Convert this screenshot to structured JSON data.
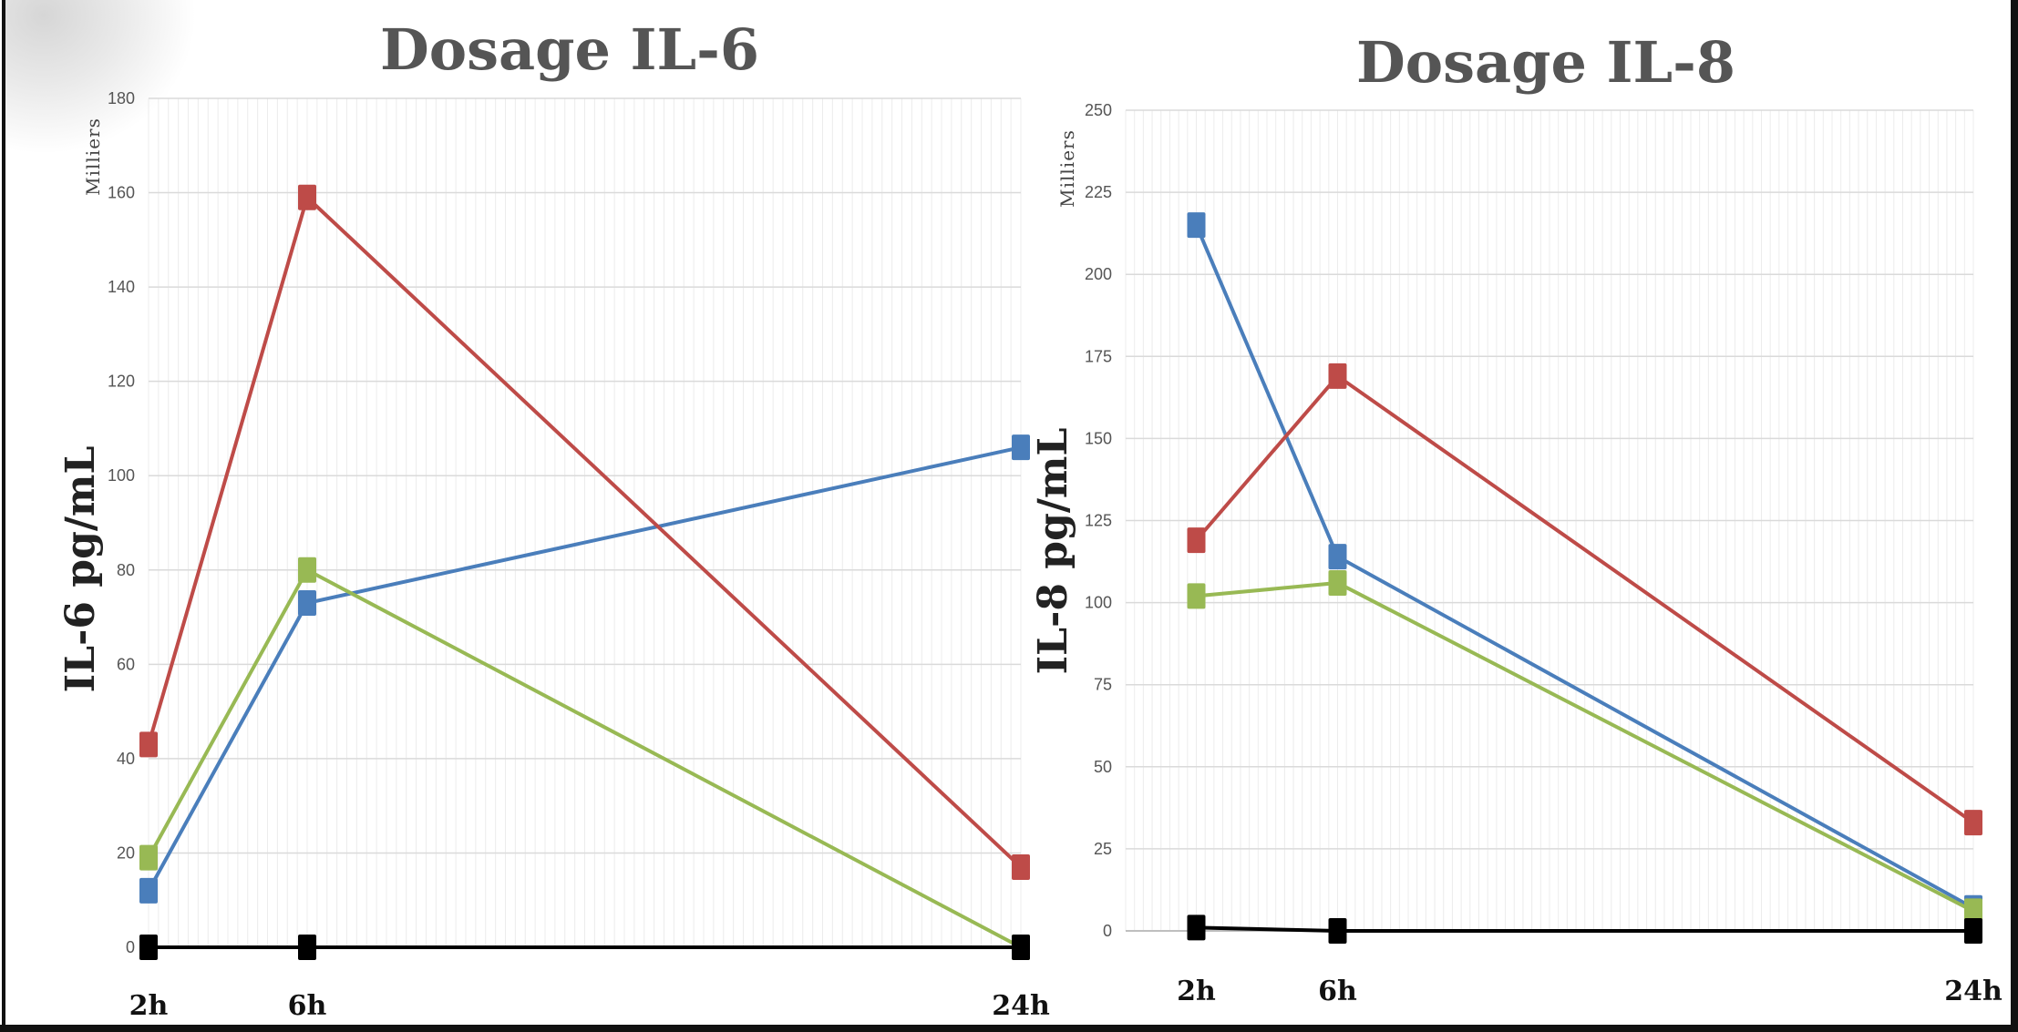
{
  "chart_data": [
    {
      "type": "line",
      "title": "Dosage IL-6",
      "ylabel": "IL-6 pg/mL",
      "units_label": "Milliers",
      "x": [
        2,
        6,
        24
      ],
      "x_tick_labels": [
        "2h",
        "6h",
        "24h"
      ],
      "xlim": [
        2,
        24
      ],
      "ylim": [
        0,
        180
      ],
      "y_ticks": [
        0,
        20,
        40,
        60,
        80,
        100,
        120,
        140,
        160,
        180
      ],
      "grid": true,
      "series": [
        {
          "color": "#4a7ebb",
          "values": [
            12,
            73,
            106
          ]
        },
        {
          "color": "#be4b48",
          "values": [
            43,
            159,
            17
          ]
        },
        {
          "color": "#98b954",
          "values": [
            19,
            80,
            0
          ]
        },
        {
          "color": "#000000",
          "values": [
            0,
            0,
            0
          ]
        }
      ]
    },
    {
      "type": "line",
      "title": "Dosage IL-8",
      "ylabel": "IL-8 pg/mL",
      "units_label": "Milliers",
      "x": [
        2,
        6,
        24
      ],
      "x_tick_labels": [
        "2h",
        "6h",
        "24h"
      ],
      "xlim": [
        0,
        24
      ],
      "ylim": [
        0,
        250
      ],
      "y_ticks": [
        0,
        25,
        50,
        75,
        100,
        125,
        150,
        175,
        200,
        225,
        250
      ],
      "grid": true,
      "series": [
        {
          "color": "#4a7ebb",
          "values": [
            215,
            114,
            7
          ]
        },
        {
          "color": "#be4b48",
          "values": [
            119,
            169,
            33
          ]
        },
        {
          "color": "#98b954",
          "values": [
            102,
            106,
            6
          ]
        },
        {
          "color": "#000000",
          "values": [
            1,
            0,
            0
          ]
        }
      ]
    }
  ]
}
